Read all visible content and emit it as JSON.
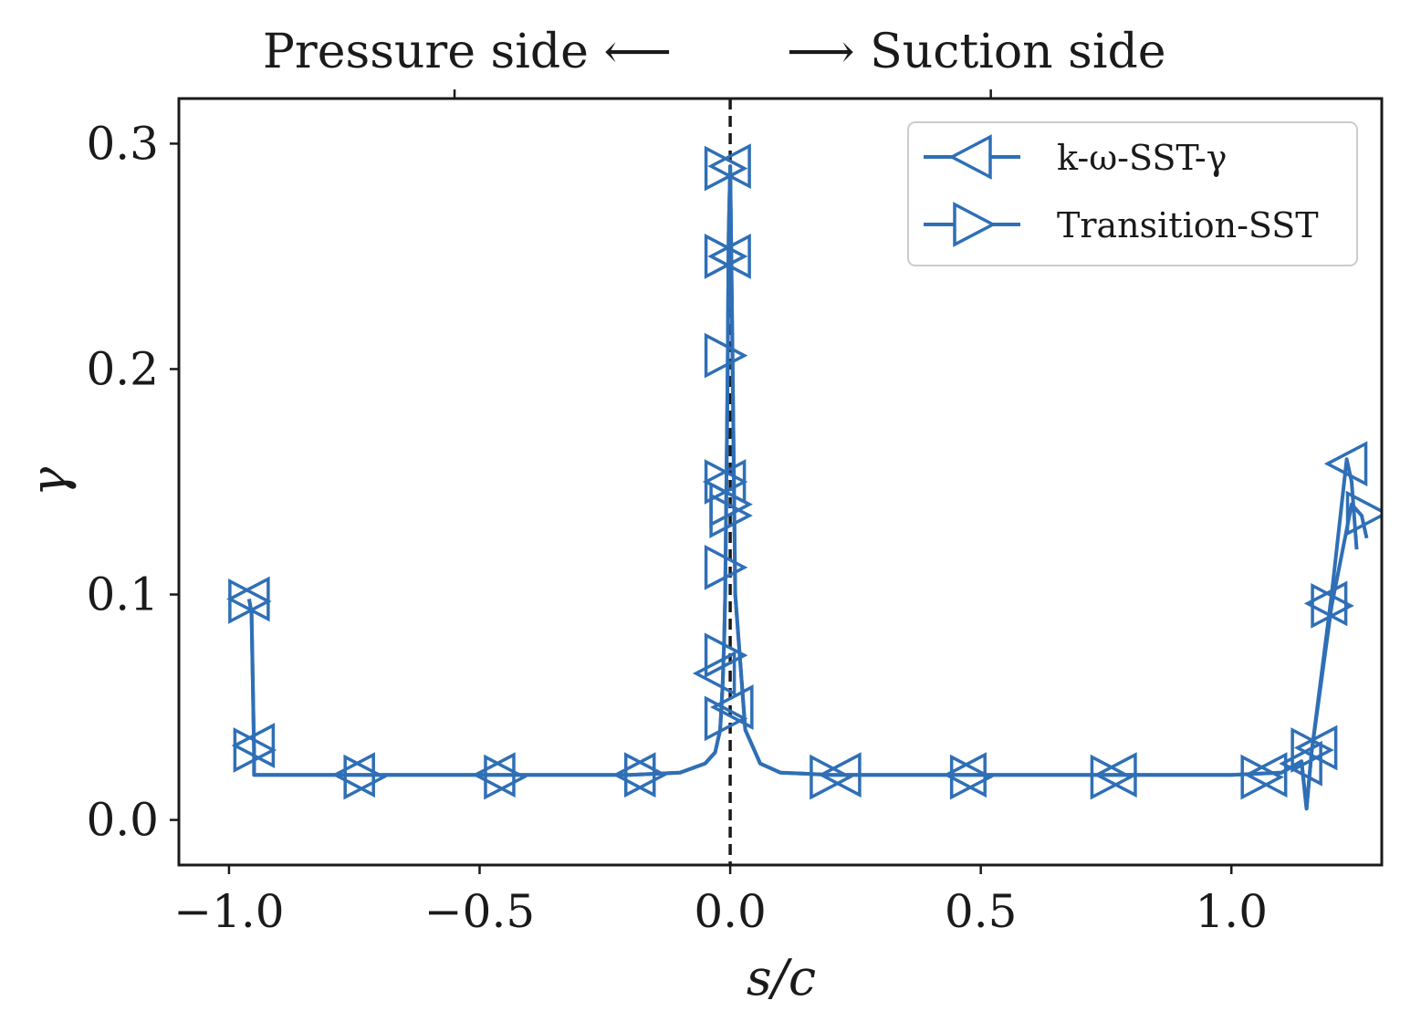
{
  "chart_data": {
    "type": "line",
    "title": "",
    "xlabel": "s/c",
    "ylabel": "γ",
    "xlim": [
      -1.1,
      1.3
    ],
    "ylim": [
      -0.02,
      0.32
    ],
    "xticks": [
      -1.0,
      -0.5,
      0.0,
      0.5,
      1.0
    ],
    "xtick_labels": [
      "−1.0",
      "−0.5",
      "0.0",
      "0.5",
      "1.0"
    ],
    "yticks": [
      0.0,
      0.1,
      0.2,
      0.3
    ],
    "ytick_labels": [
      "0.0",
      "0.1",
      "0.2",
      "0.3"
    ],
    "top_axis": {
      "tick_positions": [
        -0.55,
        0.52
      ],
      "left_label": "Pressure side ⟵",
      "right_label": "⟶ Suction side"
    },
    "reference_line": {
      "x": 0.0,
      "style": "dashed",
      "color": "#1a1a1a"
    },
    "grid": false,
    "legend_position": "top-right",
    "series": [
      {
        "name": "k-ω-SST-γ",
        "marker": "triangle-left",
        "color": "#2f6fb6",
        "x": [
          -0.96,
          -0.955,
          -0.95,
          -0.95,
          -0.9,
          -0.8,
          -0.7,
          -0.6,
          -0.5,
          -0.4,
          -0.3,
          -0.2,
          -0.1,
          -0.05,
          -0.03,
          -0.02,
          -0.015,
          -0.012,
          -0.01,
          -0.008,
          -0.005,
          -0.003,
          0.0,
          0.005,
          0.01,
          0.03,
          0.06,
          0.1,
          0.2,
          0.4,
          0.6,
          0.8,
          1.0,
          1.1,
          1.14,
          1.15,
          1.16,
          1.2,
          1.23,
          1.24,
          1.25
        ],
        "y": [
          0.098,
          0.092,
          0.03,
          0.02,
          0.02,
          0.02,
          0.02,
          0.02,
          0.02,
          0.02,
          0.02,
          0.02,
          0.021,
          0.025,
          0.03,
          0.04,
          0.06,
          0.08,
          0.1,
          0.14,
          0.2,
          0.26,
          0.29,
          0.2,
          0.1,
          0.04,
          0.025,
          0.021,
          0.02,
          0.02,
          0.02,
          0.02,
          0.02,
          0.021,
          0.026,
          0.005,
          0.03,
          0.1,
          0.16,
          0.15,
          0.12
        ],
        "marker_x": [
          -0.96,
          -0.95,
          -0.75,
          -0.47,
          -0.19,
          -0.03,
          -0.01,
          0.0,
          0.0,
          0.005,
          0.22,
          0.47,
          0.77,
          1.07,
          1.14,
          1.17,
          1.19,
          1.23
        ],
        "marker_y": [
          0.098,
          0.033,
          0.02,
          0.02,
          0.02,
          0.065,
          0.15,
          0.25,
          0.29,
          0.05,
          0.02,
          0.02,
          0.02,
          0.02,
          0.025,
          0.032,
          0.096,
          0.158
        ]
      },
      {
        "name": "Transition-SST",
        "marker": "triangle-right",
        "color": "#2f6fb6",
        "x": [
          -0.96,
          -0.955,
          -0.95,
          -0.95,
          -0.9,
          -0.8,
          -0.7,
          -0.6,
          -0.5,
          -0.4,
          -0.3,
          -0.2,
          -0.1,
          -0.05,
          -0.03,
          -0.02,
          -0.015,
          -0.012,
          -0.01,
          -0.008,
          -0.005,
          -0.003,
          0.0,
          0.005,
          0.01,
          0.03,
          0.06,
          0.1,
          0.2,
          0.4,
          0.6,
          0.8,
          1.0,
          1.1,
          1.14,
          1.15,
          1.16,
          1.2,
          1.24,
          1.26,
          1.27
        ],
        "y": [
          0.098,
          0.092,
          0.03,
          0.02,
          0.02,
          0.02,
          0.02,
          0.02,
          0.02,
          0.02,
          0.02,
          0.02,
          0.021,
          0.025,
          0.03,
          0.04,
          0.06,
          0.08,
          0.1,
          0.14,
          0.2,
          0.26,
          0.29,
          0.2,
          0.1,
          0.04,
          0.025,
          0.021,
          0.02,
          0.02,
          0.02,
          0.02,
          0.02,
          0.021,
          0.026,
          0.005,
          0.03,
          0.095,
          0.14,
          0.135,
          0.125
        ],
        "marker_x": [
          -0.96,
          -0.95,
          -0.73,
          -0.45,
          -0.17,
          -0.01,
          -0.01,
          -0.01,
          -0.01,
          -0.01,
          -0.01,
          -0.01,
          0.0,
          0.0,
          0.2,
          0.48,
          0.76,
          1.06,
          1.16,
          1.2,
          1.27
        ],
        "marker_y": [
          0.097,
          0.031,
          0.019,
          0.019,
          0.02,
          0.289,
          0.25,
          0.206,
          0.15,
          0.112,
          0.073,
          0.045,
          0.14,
          0.135,
          0.019,
          0.019,
          0.019,
          0.019,
          0.031,
          0.095,
          0.136
        ]
      }
    ]
  }
}
